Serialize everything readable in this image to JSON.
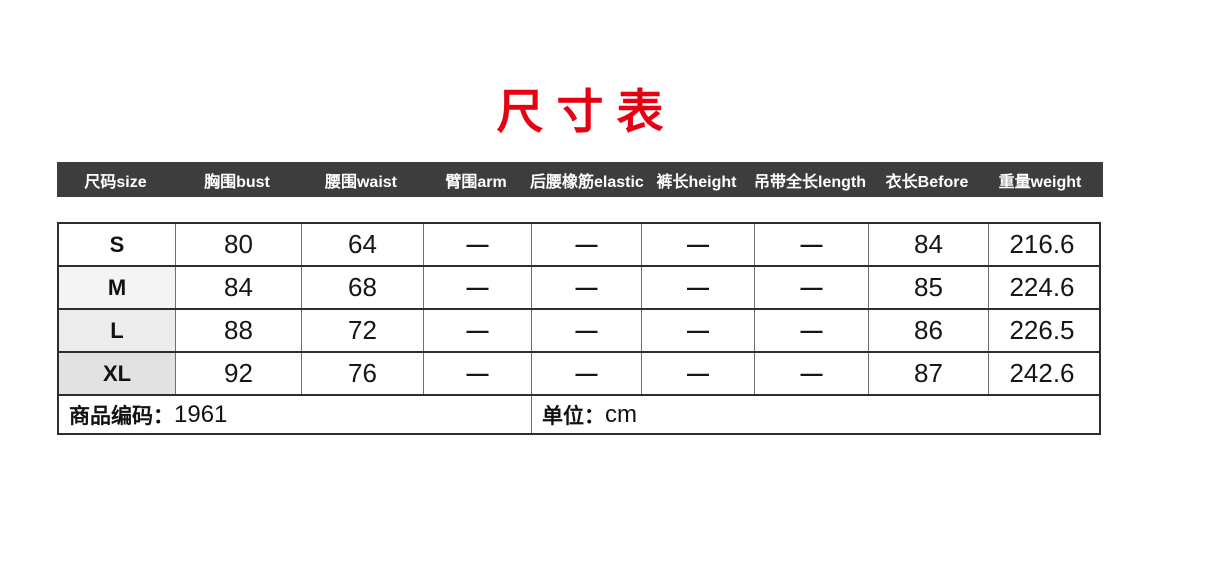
{
  "title": {
    "text": "尺寸表",
    "color": "#e60012"
  },
  "table": {
    "header_bg": "#3d3d3d",
    "header_text_color": "#ffffff",
    "columns": [
      "尺码size",
      "胸围bust",
      "腰围waist",
      "臂围arm",
      "后腰橡筋elastic",
      "裤长height",
      "吊带全长length",
      "衣长Before",
      "重量weight"
    ],
    "rows": [
      {
        "size": "S",
        "values": [
          "80",
          "64",
          "—",
          "—",
          "—",
          "—",
          "84",
          "216.6"
        ]
      },
      {
        "size": "M",
        "values": [
          "84",
          "68",
          "—",
          "—",
          "—",
          "—",
          "85",
          "224.6"
        ]
      },
      {
        "size": "L",
        "values": [
          "88",
          "72",
          "—",
          "—",
          "—",
          "—",
          "86",
          "226.5"
        ]
      },
      {
        "size": "XL",
        "values": [
          "92",
          "76",
          "—",
          "—",
          "—",
          "—",
          "87",
          "242.6"
        ]
      }
    ],
    "footer": {
      "code_label": "商品编码：",
      "code_value": "1961",
      "unit_label": "单位：",
      "unit_value": "cm"
    }
  }
}
